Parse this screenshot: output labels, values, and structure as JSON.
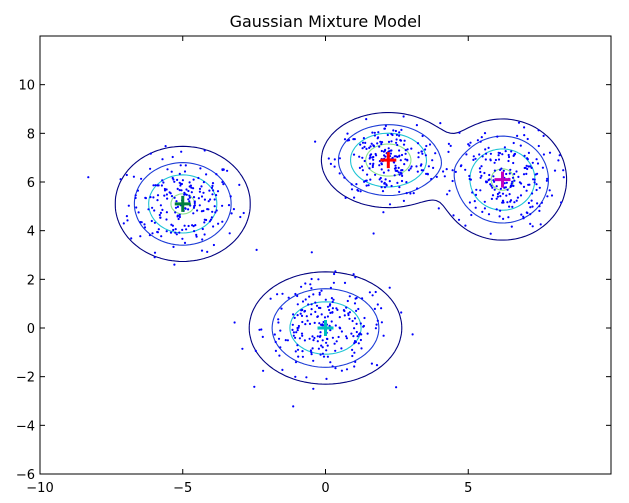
{
  "chart_data": {
    "type": "scatter",
    "title": "Gaussian Mixture Model",
    "xlabel": "",
    "ylabel": "",
    "xlim": [
      -10,
      10
    ],
    "ylim": [
      -6,
      12
    ],
    "xticks": [
      -10,
      -5,
      0,
      5
    ],
    "xtick_labels": [
      "−10",
      "−5",
      "0",
      "5"
    ],
    "yticks": [
      -6,
      -4,
      -2,
      0,
      2,
      4,
      6,
      8,
      10
    ],
    "ytick_labels": [
      "−6",
      "−4",
      "−2",
      "0",
      "2",
      "4",
      "6",
      "8",
      "10"
    ],
    "grid": false,
    "legend": "none",
    "point_color": "#0000ff",
    "points_per_component": [
      220,
      240,
      220,
      220
    ],
    "components": [
      {
        "mean": [
          -5.0,
          5.1
        ],
        "sd": [
          0.95,
          0.95
        ],
        "center_color": "#007f3f",
        "center_marker": "+"
      },
      {
        "mean": [
          0.0,
          0.0
        ],
        "sd": [
          1.1,
          0.95
        ],
        "center_color": "#00bfbf",
        "center_marker": "+"
      },
      {
        "mean": [
          2.2,
          6.9
        ],
        "sd": [
          0.9,
          0.75
        ],
        "center_color": "#ff0000",
        "center_marker": "+"
      },
      {
        "mean": [
          6.2,
          6.1
        ],
        "sd": [
          0.9,
          1.0
        ],
        "center_color": "#bf00bf",
        "center_marker": "+"
      }
    ],
    "contour_levels": [
      {
        "level": 0.002,
        "color": "#000080"
      },
      {
        "level": 0.009,
        "color": "#1c3cd6"
      },
      {
        "level": 0.02,
        "color": "#1ec4d4"
      },
      {
        "level": 0.04,
        "color": "#8ae28c"
      },
      {
        "level": 0.06,
        "color": "#f0ee6a"
      },
      {
        "level": 0.09,
        "color": "#f0a040"
      },
      {
        "level": 0.12,
        "color": "#d03030"
      }
    ]
  }
}
